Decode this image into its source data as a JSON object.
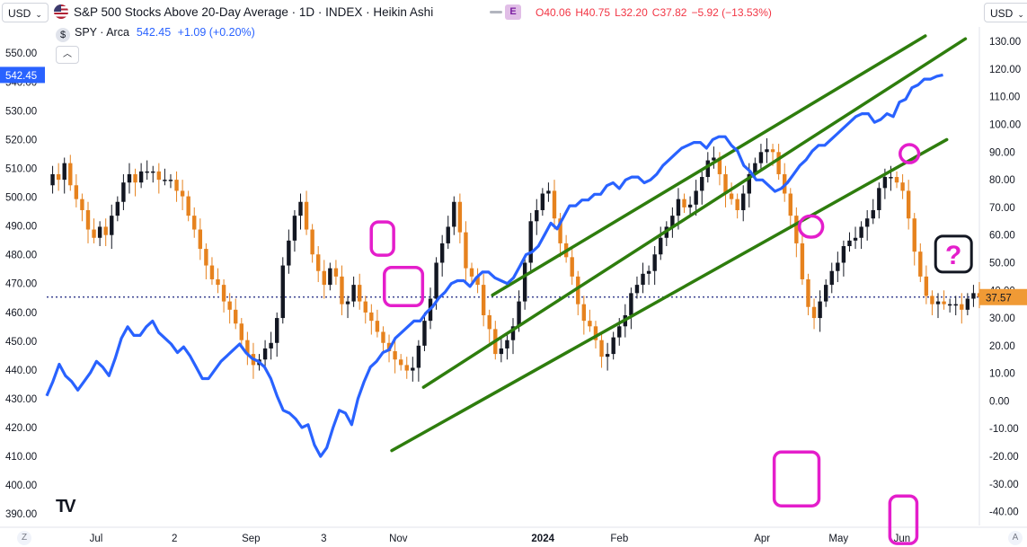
{
  "header": {
    "left_currency": "USD",
    "right_currency": "USD",
    "title": "S&P 500 Stocks Above 20-Day Average · 1D · INDEX · Heikin Ashi",
    "e_badge": "E",
    "ohlc": {
      "o": "O40.06",
      "h": "H40.75",
      "l": "L32.20",
      "c": "C37.82",
      "chg": "−5.92 (−13.53%)"
    },
    "symbol_icon": "$",
    "symbol": "SPY · Arca",
    "symbol_price": "542.45",
    "symbol_change": "+1.09 (+0.20%)",
    "collapse_icon": "chevron-up-icon",
    "logo_text": "TV"
  },
  "colors": {
    "spy_line": "#2962ff",
    "candle_up": "#131722",
    "candle_down": "#e6821e",
    "channel": "#2e7d0d",
    "highlight": "#e41ecb",
    "dotted_level": "#1a237e",
    "last_label_bg": "#f09a35",
    "spy_label_bg": "#2962ff"
  },
  "chart_data": {
    "type": "line",
    "left_axis": {
      "label": "SPY",
      "ticks": [
        "550.00",
        "540.00",
        "530.00",
        "520.00",
        "510.00",
        "500.00",
        "490.00",
        "480.00",
        "470.00",
        "460.00",
        "450.00",
        "440.00",
        "430.00",
        "420.00",
        "410.00",
        "400.00",
        "390.00"
      ],
      "ylim": [
        386,
        556
      ]
    },
    "right_axis": {
      "label": "S&P 500 Stocks Above 20-Day Average",
      "ticks": [
        "130.00",
        "120.00",
        "110.00",
        "100.00",
        "90.00",
        "80.00",
        "70.00",
        "60.00",
        "50.00",
        "40.00",
        "30.00",
        "20.00",
        "10.00",
        "0.00",
        "-10.00",
        "-20.00",
        "-30.00",
        "-40.00"
      ],
      "ylim": [
        -45,
        132
      ]
    },
    "x_axis": {
      "tick_labels": [
        "Jul",
        "2",
        "Sep",
        "3",
        "Nov",
        "2024",
        "Feb",
        "Apr",
        "May",
        "Jun"
      ],
      "left_corner": "Z",
      "right_corner": "A"
    },
    "last_value_labels": {
      "spy": "542.45",
      "breadth": "37.57"
    },
    "dotted_level": 37.57,
    "series": [
      {
        "name": "SPY",
        "axis": "left",
        "values": [
          431,
          436,
          442,
          438,
          436,
          433,
          436,
          439,
          443,
          441,
          438,
          444,
          451,
          455,
          452,
          452,
          455,
          457,
          453,
          451,
          449,
          446,
          448,
          445,
          441,
          437,
          437,
          440,
          443,
          445,
          447,
          449,
          446,
          444,
          443,
          441,
          437,
          431,
          426,
          425,
          423,
          420,
          421,
          414,
          410,
          413,
          420,
          426,
          425,
          421,
          430,
          436,
          441,
          443,
          446,
          447,
          451,
          453,
          455,
          457,
          457,
          460,
          462,
          465,
          467,
          470,
          471,
          471,
          469,
          472,
          474,
          474,
          472,
          471,
          470,
          472,
          476,
          480,
          481,
          483,
          487,
          491,
          489,
          493,
          497,
          497,
          499,
          499,
          501,
          501,
          504,
          505,
          503,
          506,
          507,
          507,
          505,
          506,
          508,
          511,
          513,
          515,
          517,
          518,
          519,
          519,
          517,
          520,
          521,
          521,
          518,
          516,
          511,
          509,
          506,
          506,
          504,
          502,
          503,
          505,
          508,
          511,
          513,
          516,
          518,
          518,
          520,
          522,
          524,
          526,
          528,
          529,
          529,
          526,
          527,
          529,
          528,
          533,
          534,
          538,
          539,
          541,
          541,
          542,
          542.45
        ]
      },
      {
        "name": "S&P 500 Stocks Above 20-Day Average",
        "axis": "right",
        "values": [
          78,
          82,
          80,
          86,
          78,
          73,
          69,
          62,
          59,
          63,
          60,
          67,
          72,
          79,
          82,
          79,
          83,
          83,
          83,
          80,
          80,
          80,
          76,
          74,
          67,
          62,
          55,
          49,
          44,
          42,
          36,
          33,
          28,
          22,
          17,
          13,
          15,
          19,
          21,
          30,
          49,
          58,
          67,
          72,
          62,
          53,
          47,
          42,
          48,
          45,
          35,
          36,
          42,
          36,
          32,
          29,
          25,
          21,
          18,
          15,
          13,
          11,
          12,
          20,
          29,
          37,
          50,
          57,
          63,
          72,
          61,
          48,
          45,
          42,
          31,
          26,
          17,
          19,
          22,
          27,
          36,
          50,
          65,
          69,
          75,
          76,
          66,
          57,
          52,
          45,
          35,
          29,
          27,
          22,
          16,
          17,
          23,
          27,
          31,
          39,
          42,
          46,
          47,
          53,
          59,
          63,
          67,
          73,
          70,
          71,
          76,
          81,
          87,
          88,
          82,
          75,
          73,
          69,
          75,
          82,
          86,
          90,
          91,
          90,
          82,
          75,
          67,
          57,
          44,
          34,
          30,
          36,
          42,
          47,
          50,
          56,
          58,
          59,
          63,
          66,
          69,
          77,
          81,
          81,
          79,
          76,
          66,
          54,
          45,
          38,
          35,
          36,
          35,
          35,
          35,
          33,
          37,
          39,
          37.57
        ]
      }
    ],
    "trend_channel_upper": {
      "x": [
        0.478,
        0.942
      ],
      "y": [
        466,
        556
      ]
    },
    "trend_channel_middle": {
      "x": [
        0.404,
        0.985
      ],
      "y": [
        434,
        555
      ]
    },
    "trend_channel_lower": {
      "x": [
        0.37,
        0.965
      ],
      "y": [
        412,
        520
      ]
    },
    "annotation": "?"
  }
}
